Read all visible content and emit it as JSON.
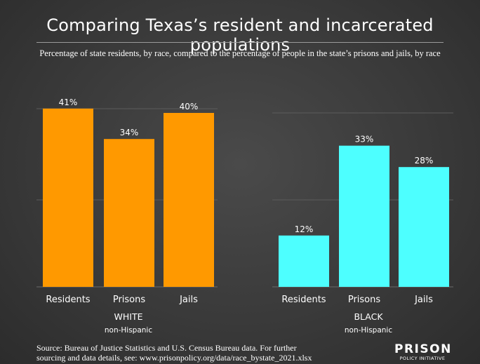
{
  "title": "Comparing Texas’s resident and incarcerated populations",
  "subtitle": "Percentage of state residents, by race, compared to the percentage of people in the state’s prisons and jails, by race",
  "source_line1": "Source: Bureau of Justice Statistics and U.S. Census Bureau data. For further",
  "source_line2": "sourcing and data details, see: www.prisonpolicy.org/data/race_bystate_2021.xlsx",
  "logo": {
    "main": "PRISON",
    "sub": "POLICY INITIATIVE"
  },
  "colors": {
    "white_panel": "#ff9900",
    "black_panel": "#4dffff",
    "grid": "#5c5c5c",
    "text": "#ffffff"
  },
  "chart_data": [
    {
      "type": "bar",
      "group": "WHITE",
      "group_sub": "non-Hispanic",
      "categories": [
        "Residents",
        "Prisons",
        "Jails"
      ],
      "values": [
        41,
        34,
        40
      ],
      "labels": [
        "41%",
        "34%",
        "40%"
      ],
      "ylim": [
        0,
        50
      ],
      "grid": true
    },
    {
      "type": "bar",
      "group": "BLACK",
      "group_sub": "non-Hispanic",
      "categories": [
        "Residents",
        "Prisons",
        "Jails"
      ],
      "values": [
        12,
        33,
        28
      ],
      "labels": [
        "12%",
        "33%",
        "28%"
      ],
      "ylim": [
        0,
        40
      ],
      "grid": true
    }
  ]
}
